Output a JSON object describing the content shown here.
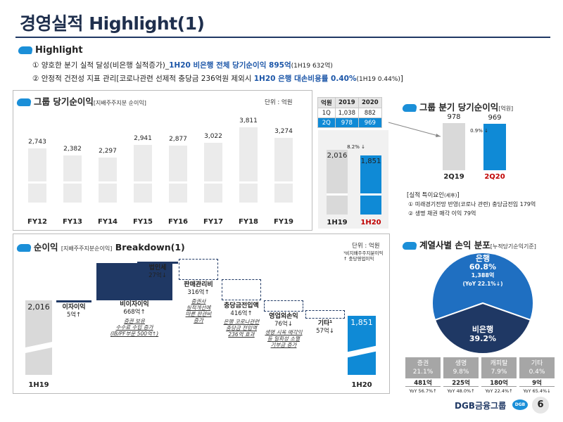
{
  "title": "경영실적 Highlight(1)",
  "highlight": {
    "heading": "Highlight",
    "line1_prefix": "① 양호한 분기 실적 달성(비은행 실적증가)_",
    "line1_blue": "1H20 비은행 전체 당기순이익 895억",
    "line1_small": "(1H19 632억)",
    "line2_prefix": "② 안정적 건전성 지표 관리[코로나관련 선제적 충당금 236억원 제외시 ",
    "line2_blue": "1H20 은행 대손비용률 0.40%",
    "line2_small": "(1H19 0.44%)",
    "line2_suffix": "]"
  },
  "group_net": {
    "title": "그룹 당기순이익",
    "subtitle": "[지배주주지분 순이익]",
    "unit": "단위 : 억원",
    "chart_data": {
      "type": "bar",
      "categories": [
        "FY12",
        "FY13",
        "FY14",
        "FY15",
        "FY16",
        "FY17",
        "FY18",
        "FY19"
      ],
      "values": [
        2743,
        2382,
        2297,
        2941,
        2877,
        3022,
        3811,
        3274
      ],
      "value_labels": [
        "2,743",
        "2,382",
        "2,297",
        "2,941",
        "2,877",
        "3,022",
        "3,811",
        "3,274"
      ]
    }
  },
  "half": {
    "table_header": [
      "억원",
      "2019",
      "2020"
    ],
    "table_rows": [
      [
        "1Q",
        "1,038",
        "882"
      ],
      [
        "2Q",
        "978",
        "969"
      ]
    ],
    "change": "8.2% ↓",
    "chart_data": {
      "type": "bar",
      "categories": [
        "1H19",
        "1H20"
      ],
      "values": [
        2016,
        1851
      ],
      "value_labels": [
        "2,016",
        "1,851"
      ]
    }
  },
  "quarter": {
    "title": "그룹 분기 당기순이익",
    "subtitle": "[억원]",
    "change": "0.9% ↓",
    "chart_data": {
      "type": "bar",
      "categories": [
        "2Q19",
        "2Q20"
      ],
      "values": [
        978,
        969
      ],
      "value_labels": [
        "978",
        "969"
      ]
    },
    "factors_title": "[실적 특이요인",
    "factors_title_sub": "(세후)",
    "factors_title_end": "]",
    "factor1": "① 미래경기전망 반영(코로나 관련) 충당금전입 179억",
    "factor2": "② 생명 채권 매각 이익 79억"
  },
  "breakdown": {
    "title": "순이익",
    "subtitle": "[지배주주지분순이익]",
    "title_end": " Breakdown(1)",
    "unit": "단위 : 억원",
    "footnote1": "¹비지배주주지분이익",
    "footnote2": "↑ 충당영업이익",
    "start_label": "1H19",
    "end_label": "1H20",
    "start_value": "2,016",
    "end_value": "1,851",
    "items": [
      {
        "name": "이자이익",
        "value": "5억↑",
        "note": ""
      },
      {
        "name": "비이자이익",
        "value": "668억↑",
        "note": "증권 보유\n수수료 수입 증가\n(IB/PF부문 500억↑)"
      },
      {
        "name": "법인세",
        "value": "27억↓",
        "note": ""
      },
      {
        "name": "판매관리비",
        "value": "316억↑",
        "note": "증권사\n실적개선에\n따른 판관비\n증가"
      },
      {
        "name": "충당금전입액",
        "value": "416억↑",
        "note": "은행 코로나관련\n충당금 전입액\n236억 효과"
      },
      {
        "name": "영업외손익",
        "value": "76억↓",
        "note": "생명 시옥 매각익\n등 일회성 소멸\n기부금 증가"
      },
      {
        "name": "기타¹",
        "value": "57억↓",
        "note": ""
      }
    ]
  },
  "segments": {
    "title": "계열사별 손익 분포",
    "subtitle": "[누적당기순익기준]",
    "chart_data": {
      "type": "pie",
      "slices": [
        {
          "name": "은행",
          "pct": "60.8%",
          "value": "1,388억",
          "yoy": "(YoY 22.1%↓)",
          "fraction": 0.608
        },
        {
          "name": "비은행",
          "pct": "39.2%",
          "fraction": 0.392
        }
      ]
    },
    "boxes": [
      {
        "name": "증권",
        "pct": "21.1%",
        "value": "481억",
        "yoy": "YoY 56.7%↑"
      },
      {
        "name": "생명",
        "pct": "9.8%",
        "value": "225억",
        "yoy": "YoY 48.0%↑"
      },
      {
        "name": "캐피탈",
        "pct": "7.9%",
        "value": "180억",
        "yoy": "YoY 22.4%↑"
      },
      {
        "name": "기타",
        "pct": "0.4%",
        "value": "9억",
        "yoy": "YoY 65.4%↓"
      }
    ]
  },
  "footer": {
    "brand": "DGB금융그룹",
    "logo": "DGB",
    "page": "6"
  },
  "colors": {
    "navy": "#1f3864",
    "blue": "#0f8ad6",
    "grey": "#ebebeb"
  }
}
